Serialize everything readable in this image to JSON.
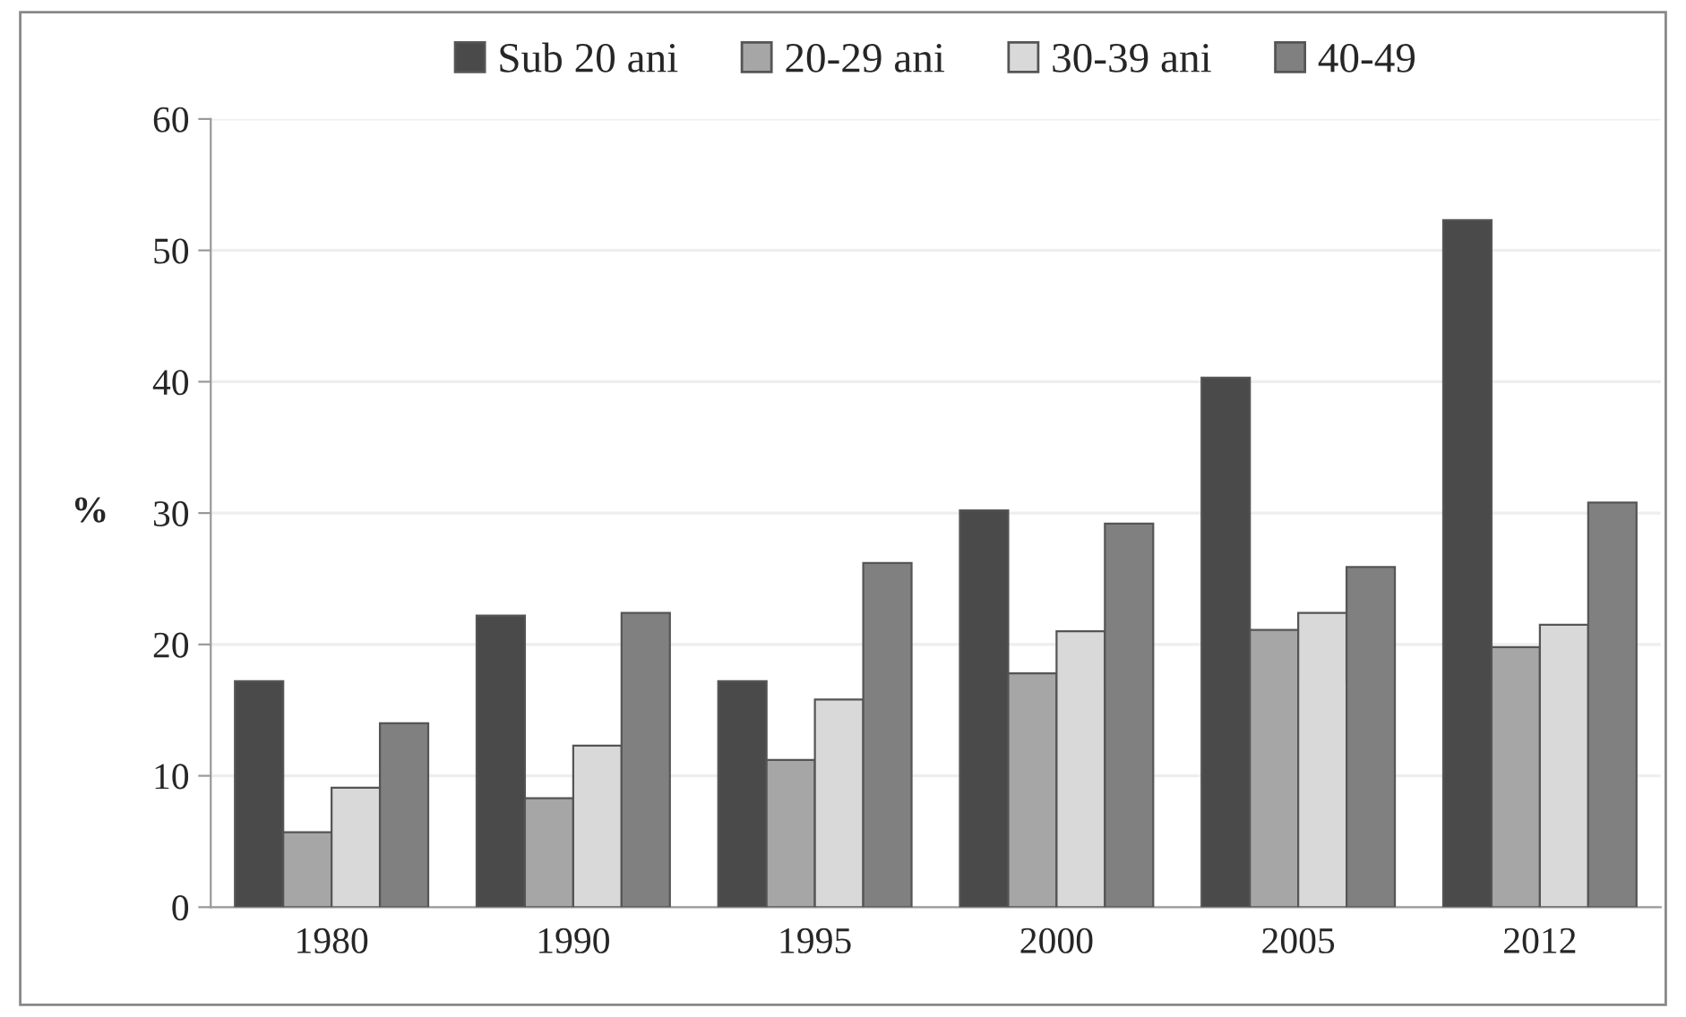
{
  "chart_data": {
    "type": "bar",
    "ylabel": "%",
    "categories": [
      "1980",
      "1990",
      "1995",
      "2000",
      "2005",
      "2012"
    ],
    "series": [
      {
        "name": "Sub 20 ani",
        "color": "#4a4a4a",
        "values": [
          17.2,
          22.2,
          17.2,
          30.2,
          40.3,
          52.3
        ]
      },
      {
        "name": "20-29 ani",
        "color": "#a6a6a6",
        "values": [
          5.7,
          8.3,
          11.2,
          17.8,
          21.1,
          19.8
        ]
      },
      {
        "name": "30-39 ani",
        "color": "#d9d9d9",
        "values": [
          9.1,
          12.3,
          15.8,
          21.0,
          22.4,
          21.5
        ]
      },
      {
        "name": "40-49",
        "color": "#808080",
        "values": [
          14.0,
          22.4,
          26.2,
          29.2,
          25.9,
          30.8
        ]
      }
    ],
    "ylim": [
      0,
      60
    ],
    "yticks": [
      0,
      10,
      20,
      30,
      40,
      50,
      60
    ],
    "grid": "y",
    "legend": "top"
  }
}
